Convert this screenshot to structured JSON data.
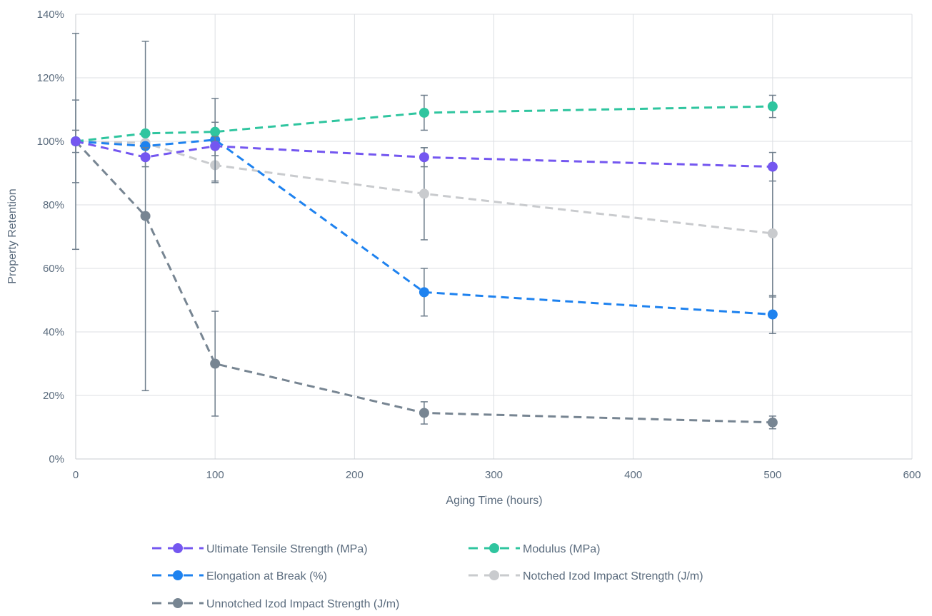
{
  "chart_data": {
    "type": "line",
    "title": "",
    "xlabel": "Aging Time (hours)",
    "ylabel": "Property Retention",
    "xlim": [
      0,
      600
    ],
    "ylim": [
      0,
      140
    ],
    "xticks": [
      "0",
      "100",
      "200",
      "300",
      "400",
      "500",
      "600"
    ],
    "yticks": [
      "0%",
      "20%",
      "40%",
      "60%",
      "80%",
      "100%",
      "120%",
      "140%"
    ],
    "grid": true,
    "legend_position": "bottom",
    "line_style": "dashed",
    "series": [
      {
        "name": "Ultimate Tensile Strength (MPa)",
        "color": "#7457f0",
        "points": [
          {
            "x": 0,
            "y": 100,
            "err": 3.5
          },
          {
            "x": 50,
            "y": 95,
            "err": 3
          },
          {
            "x": 100,
            "y": 98.5,
            "err": 3
          },
          {
            "x": 250,
            "y": 95,
            "err": 3
          },
          {
            "x": 500,
            "y": 92,
            "err": 4.5
          }
        ]
      },
      {
        "name": "Modulus (MPa)",
        "color": "#2fc59f",
        "points": [
          {
            "x": 0,
            "y": 100,
            "err": 0
          },
          {
            "x": 50,
            "y": 102.5,
            "err": 0
          },
          {
            "x": 100,
            "y": 103,
            "err": 3
          },
          {
            "x": 250,
            "y": 109,
            "err": 5.5
          },
          {
            "x": 500,
            "y": 111,
            "err": 3.5
          }
        ]
      },
      {
        "name": "Elongation at Break (%)",
        "color": "#1e82ef",
        "points": [
          {
            "x": 0,
            "y": 100,
            "err": 13
          },
          {
            "x": 50,
            "y": 98.5,
            "err": 0
          },
          {
            "x": 100,
            "y": 100.5,
            "err": 13
          },
          {
            "x": 250,
            "y": 52.5,
            "err": 7.5
          },
          {
            "x": 500,
            "y": 45.5,
            "err": 6
          }
        ]
      },
      {
        "name": "Notched Izod Impact Strength (J/m)",
        "color": "#c9cbce",
        "points": [
          {
            "x": 0,
            "y": 100,
            "err": 0
          },
          {
            "x": 50,
            "y": 99.5,
            "err": 0
          },
          {
            "x": 100,
            "y": 92.5,
            "err": 5.5
          },
          {
            "x": 250,
            "y": 83.5,
            "err": 14.5
          },
          {
            "x": 500,
            "y": 71,
            "err": 20
          }
        ]
      },
      {
        "name": "Unnotched Izod Impact Strength (J/m)",
        "color": "#778592",
        "points": [
          {
            "x": 0,
            "y": 100,
            "err": 34
          },
          {
            "x": 50,
            "y": 76.5,
            "err": 55
          },
          {
            "x": 100,
            "y": 30,
            "err": 16.5
          },
          {
            "x": 250,
            "y": 14.5,
            "err": 3.5
          },
          {
            "x": 500,
            "y": 11.5,
            "err": 2
          }
        ]
      }
    ]
  }
}
